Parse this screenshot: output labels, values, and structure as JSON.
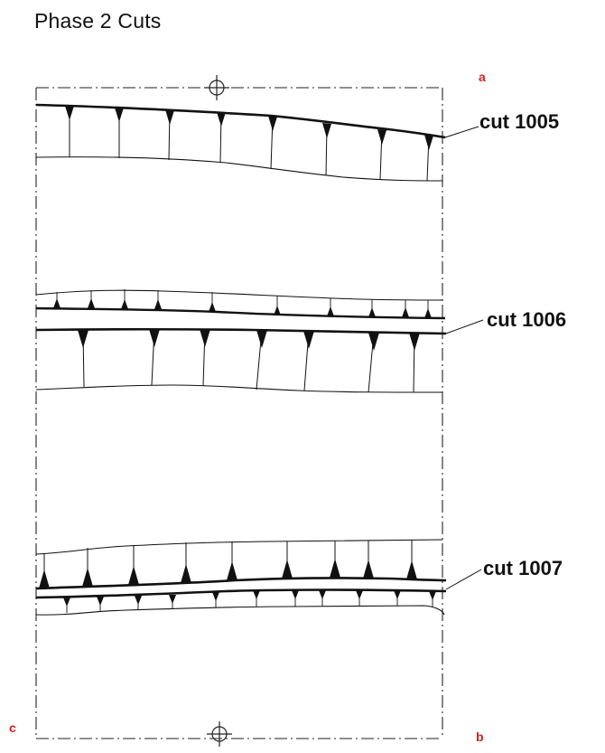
{
  "title": "Phase 2 Cuts",
  "corner_labels": {
    "a": "a",
    "b": "b",
    "c": "c",
    "color": "#d62020"
  },
  "cuts": {
    "cut_1005": "cut 1005",
    "cut_1006": "cut 1006",
    "cut_1007": "cut 1007"
  },
  "icons": {
    "top_marker": "crosshair-icon",
    "bottom_marker": "crosshair-icon"
  }
}
